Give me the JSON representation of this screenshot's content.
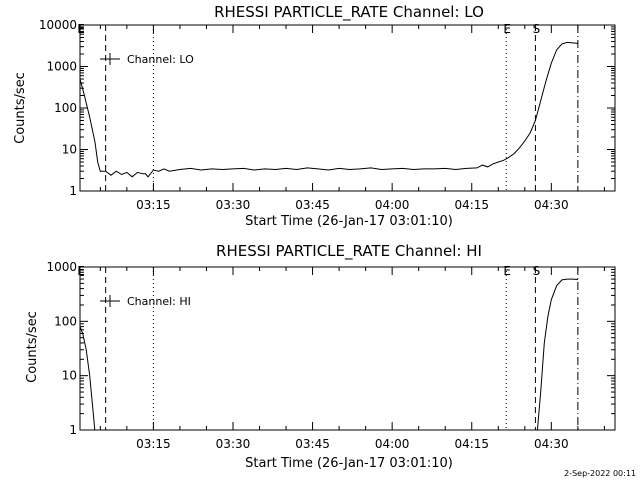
{
  "chart_data": [
    {
      "type": "line",
      "title": "RHESSI PARTICLE_RATE Channel: LO",
      "xlabel": "Start Time (26-Jan-17 03:01:10)",
      "ylabel": "Counts/sec",
      "yscale": "log",
      "ylim": [
        1,
        10000
      ],
      "xlim": [
        "03:01:10",
        "04:42:00"
      ],
      "x_ticks": [
        "03:15",
        "03:30",
        "03:45",
        "04:00",
        "04:15",
        "04:30"
      ],
      "y_ticks": [
        "1",
        "10",
        "100",
        "1000",
        "10000"
      ],
      "legend": "Channel: LO",
      "legend_placement": "top-left",
      "markers": [
        {
          "label": "E",
          "time": "03:01:10",
          "style": "none"
        },
        {
          "label": "",
          "time": "03:06:00",
          "style": "dashed"
        },
        {
          "label": "",
          "time": "03:15:00",
          "style": "dotted"
        },
        {
          "label": "E",
          "time": "04:21:30",
          "style": "dotted"
        },
        {
          "label": "S",
          "time": "04:27:00",
          "style": "dashed"
        },
        {
          "label": "",
          "time": "04:35:00",
          "style": "dashdot"
        }
      ],
      "series": [
        {
          "x": [
            "03:01:10",
            "03:02:00",
            "03:03:00",
            "03:04:00",
            "03:04:30",
            "03:05:00",
            "03:06:00",
            "03:07:00",
            "03:08:00",
            "03:09:00",
            "03:10:00",
            "03:11:00",
            "03:12:00",
            "03:13:00",
            "03:13:30",
            "03:14:00",
            "03:15:00",
            "03:16:00",
            "03:17:00",
            "03:18:00",
            "03:20:00",
            "03:22:00",
            "03:24:00",
            "03:26:00",
            "03:28:00",
            "03:30:00",
            "03:32:00",
            "03:34:00",
            "03:36:00",
            "03:38:00",
            "03:40:00",
            "03:42:00",
            "03:44:00",
            "03:46:00",
            "03:48:00",
            "03:50:00",
            "03:52:00",
            "03:54:00",
            "03:56:00",
            "03:58:00",
            "04:00:00",
            "04:02:00",
            "04:04:00",
            "04:06:00",
            "04:08:00",
            "04:10:00",
            "04:12:00",
            "04:14:00",
            "04:16:00",
            "04:17:00",
            "04:18:00",
            "04:19:00",
            "04:20:00",
            "04:21:00",
            "04:22:00",
            "04:23:00",
            "04:24:00",
            "04:25:00",
            "04:26:00",
            "04:27:00",
            "04:28:00",
            "04:29:00",
            "04:30:00",
            "04:31:00",
            "04:32:00",
            "04:33:00",
            "04:34:00",
            "04:35:00"
          ],
          "values": [
            500,
            200,
            60,
            15,
            5,
            3,
            3,
            2.4,
            3,
            2.5,
            2.8,
            2.2,
            2.8,
            2.6,
            2.6,
            2.2,
            3.2,
            3.0,
            3.4,
            3.0,
            3.3,
            3.5,
            3.2,
            3.4,
            3.3,
            3.4,
            3.5,
            3.2,
            3.4,
            3.3,
            3.5,
            3.3,
            3.6,
            3.4,
            3.2,
            3.5,
            3.3,
            3.4,
            3.6,
            3.3,
            3.4,
            3.5,
            3.3,
            3.4,
            3.4,
            3.5,
            3.3,
            3.5,
            3.6,
            4.2,
            3.8,
            4.5,
            5,
            5.5,
            6.5,
            8,
            11,
            16,
            25,
            50,
            150,
            450,
            1200,
            2500,
            3500,
            3800,
            3700,
            3600
          ]
        }
      ]
    },
    {
      "type": "line",
      "title": "RHESSI PARTICLE_RATE Channel: HI",
      "xlabel": "Start Time (26-Jan-17 03:01:10)",
      "ylabel": "Counts/sec",
      "yscale": "log",
      "ylim": [
        1,
        1000
      ],
      "xlim": [
        "03:01:10",
        "04:42:00"
      ],
      "x_ticks": [
        "03:15",
        "03:30",
        "03:45",
        "04:00",
        "04:15",
        "04:30"
      ],
      "y_ticks": [
        "1",
        "10",
        "100",
        "1000"
      ],
      "legend": "Channel: HI",
      "legend_placement": "top-left",
      "markers": [
        {
          "label": "E",
          "time": "03:01:10",
          "style": "none"
        },
        {
          "label": "",
          "time": "03:06:00",
          "style": "dashed"
        },
        {
          "label": "",
          "time": "03:15:00",
          "style": "dotted"
        },
        {
          "label": "E",
          "time": "04:21:30",
          "style": "dotted"
        },
        {
          "label": "S",
          "time": "04:27:00",
          "style": "dashed"
        },
        {
          "label": "",
          "time": "04:35:00",
          "style": "dashdot"
        }
      ],
      "series": [
        {
          "x": [
            "03:01:10",
            "03:01:40",
            "03:02:20",
            "03:03:00",
            "03:03:40",
            "03:04:00",
            "04:27:20",
            "04:28:00",
            "04:28:40",
            "04:29:20",
            "04:30:00",
            "04:31:00",
            "04:32:00",
            "04:33:00",
            "04:34:00",
            "04:35:00"
          ],
          "values": [
            80,
            60,
            30,
            10,
            2,
            0.9,
            0.9,
            5,
            40,
            120,
            250,
            450,
            580,
            600,
            600,
            590
          ]
        }
      ]
    }
  ],
  "footer": {
    "timestamp": "2-Sep-2022 00:11"
  }
}
